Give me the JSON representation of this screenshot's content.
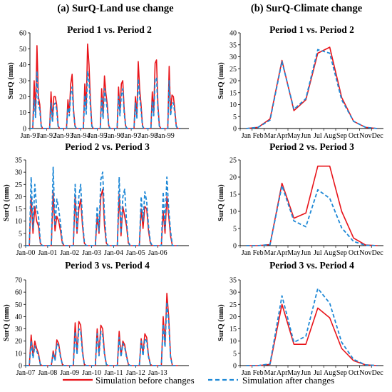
{
  "column_titles": {
    "left": "(a) SurQ-Land use change",
    "right": "(b) SurQ-Climate change"
  },
  "colors": {
    "before": "#e8141a",
    "after": "#1e88d6",
    "axis": "#000000",
    "grid": "#c8c8c8"
  },
  "legend": {
    "before": "Simulation before changes",
    "after": "Simulation after changes"
  },
  "chart_data": [
    {
      "type": "line",
      "title": "Period 1 vs. Period 2",
      "ylabel": "SurQ (mm)",
      "ylim": [
        0,
        60
      ],
      "yticks": [
        0,
        10,
        20,
        30,
        40,
        50,
        60
      ],
      "grid": false,
      "xtick_labels": [
        "Jan-91",
        "Jan-92",
        "Jan-93",
        "Jan-94",
        "Jan-95",
        "Jan-96",
        "Jan-97",
        "Jan-98",
        "Jan-99"
      ],
      "months_per_label": 12,
      "series": [
        {
          "name": "Simulation before changes",
          "values": [
            0,
            0,
            0,
            30,
            10,
            52,
            20,
            15,
            2,
            0,
            0,
            0,
            0,
            0,
            0,
            23,
            5,
            20,
            20,
            15,
            2,
            0,
            0,
            0,
            0,
            0,
            0,
            18,
            10,
            28,
            34,
            12,
            2,
            0,
            0,
            0,
            0,
            0,
            0,
            28,
            12,
            53,
            40,
            18,
            2,
            0,
            0,
            0,
            0,
            0,
            0,
            25,
            8,
            33,
            22,
            15,
            2,
            0,
            0,
            0,
            0,
            0,
            0,
            26,
            10,
            28,
            30,
            12,
            2,
            0,
            0,
            0,
            0,
            0,
            0,
            20,
            8,
            42,
            25,
            15,
            2,
            0,
            0,
            0,
            0,
            0,
            0,
            23,
            10,
            41,
            43,
            15,
            2,
            0,
            0,
            0,
            0,
            0,
            0,
            39,
            10,
            21,
            20,
            12,
            2,
            0,
            0,
            0
          ]
        },
        {
          "name": "Simulation after changes",
          "values": [
            0,
            0,
            0,
            18,
            7,
            36,
            15,
            12,
            1.5,
            0,
            0,
            0,
            0,
            0,
            0,
            16,
            4,
            15,
            16,
            12,
            1.5,
            0,
            0,
            0,
            0,
            0,
            0,
            13,
            8,
            22,
            26,
            10,
            1.5,
            0,
            0,
            0,
            0,
            0,
            0,
            21,
            9,
            36,
            30,
            14,
            1.5,
            0,
            0,
            0,
            0,
            0,
            0,
            19,
            6,
            25,
            18,
            12,
            1.5,
            0,
            0,
            0,
            0,
            0,
            0,
            20,
            8,
            21,
            25,
            10,
            1.5,
            0,
            0,
            0,
            0,
            0,
            0,
            16,
            6,
            31,
            20,
            12,
            1.5,
            0,
            0,
            0,
            0,
            0,
            0,
            17,
            8,
            31,
            32,
            12,
            1.5,
            0,
            0,
            0,
            0,
            0,
            0,
            30,
            8,
            16,
            16,
            10,
            1.5,
            0,
            0,
            0
          ]
        }
      ]
    },
    {
      "type": "line",
      "title": "Period 1 vs. Period 2",
      "ylabel": "SurQ (mm)",
      "ylim": [
        0,
        40
      ],
      "yticks": [
        0,
        5,
        10,
        15,
        20,
        25,
        30,
        35,
        40
      ],
      "grid": false,
      "categories": [
        "Jan",
        "Feb",
        "Mar",
        "Apr",
        "May",
        "Jun",
        "Jul",
        "Aug",
        "Sep",
        "Oct",
        "Nov",
        "Dec"
      ],
      "series": [
        {
          "name": "Simulation before changes",
          "values": [
            0,
            0.5,
            4,
            28.5,
            7.5,
            12,
            31.5,
            34,
            13,
            3,
            0.5,
            0
          ]
        },
        {
          "name": "Simulation after changes",
          "values": [
            0,
            0.5,
            3.5,
            28,
            8,
            12.5,
            33,
            31.5,
            12,
            3,
            0.5,
            0
          ]
        }
      ]
    },
    {
      "type": "line",
      "title": "Period 2 vs. Period 3",
      "ylabel": "SurQ (mm)",
      "ylim": [
        0,
        35
      ],
      "yticks": [
        0,
        5,
        10,
        15,
        20,
        25,
        30,
        35
      ],
      "grid": false,
      "xtick_labels": [
        "Jan-00",
        "Jan-01",
        "Jan-02",
        "Jan-03",
        "Jan-04",
        "Jan-05",
        "Jan-06"
      ],
      "months_per_label": 12,
      "series": [
        {
          "name": "Simulation before changes",
          "values": [
            0,
            0,
            0,
            20,
            5,
            16,
            10,
            8,
            1,
            0,
            0,
            0,
            0,
            0,
            0,
            22,
            6,
            12,
            10,
            6,
            1,
            0,
            0,
            0,
            0,
            0,
            0,
            20,
            5,
            15,
            19,
            8,
            1,
            0,
            0,
            0,
            0,
            0,
            0,
            12,
            5,
            20,
            23,
            8,
            1,
            0,
            0,
            0,
            0,
            0,
            0,
            21,
            4,
            16,
            12,
            8,
            1,
            0,
            0,
            0,
            0,
            0,
            0,
            15,
            7,
            16,
            15,
            6,
            1,
            0,
            0,
            0,
            0,
            0,
            0,
            14,
            5,
            20,
            12,
            4,
            0,
            0,
            0,
            0
          ]
        },
        {
          "name": "Simulation after changes",
          "values": [
            0,
            0,
            0,
            28,
            7,
            25,
            15,
            12,
            1.5,
            0,
            0,
            0,
            0,
            0,
            0,
            32,
            8,
            19,
            15,
            9,
            1.5,
            0,
            0,
            0,
            0,
            0,
            0,
            25,
            6,
            20,
            25,
            10,
            1.5,
            0,
            0,
            0,
            0,
            0,
            0,
            16,
            6,
            27,
            30,
            12,
            1.5,
            0,
            0,
            0,
            0,
            0,
            0,
            28,
            5,
            20,
            23,
            10,
            1.5,
            0,
            0,
            0,
            0,
            0,
            0,
            20,
            10,
            22,
            18,
            8,
            1.5,
            0,
            0,
            0,
            0,
            0,
            0,
            22,
            7,
            28,
            15,
            6,
            0,
            0,
            0,
            0
          ]
        }
      ]
    },
    {
      "type": "line",
      "title": "Period 2 vs. Period 3",
      "ylabel": "SurQ (mm)",
      "ylim": [
        0,
        25
      ],
      "yticks": [
        0,
        5,
        10,
        15,
        20,
        25
      ],
      "grid": false,
      "categories": [
        "Jan",
        "Feb",
        "Mar",
        "Apr",
        "May",
        "Jun",
        "Jul",
        "Aug",
        "Sep",
        "Oct",
        "Nov",
        "Dec"
      ],
      "series": [
        {
          "name": "Simulation before changes",
          "values": [
            0,
            0,
            0.3,
            18.2,
            8,
            9.5,
            23.2,
            23.2,
            10,
            2.2,
            0.2,
            0
          ]
        },
        {
          "name": "Simulation after changes",
          "values": [
            0,
            0,
            0.3,
            17.5,
            7.2,
            5.5,
            16.3,
            13.8,
            5.2,
            1.2,
            0.1,
            0
          ]
        }
      ]
    },
    {
      "type": "line",
      "title": "Period 3 vs. Period 4",
      "ylabel": "SurQ (mm)",
      "ylim": [
        0,
        70
      ],
      "yticks": [
        0,
        10,
        20,
        30,
        40,
        50,
        60,
        70
      ],
      "grid": false,
      "xtick_labels": [
        "Jan-07",
        "Jan-08",
        "Jan-09",
        "Jan-10",
        "Jan-11",
        "Jan-12",
        "Jan-13"
      ],
      "months_per_label": 12,
      "series": [
        {
          "name": "Simulation before changes",
          "values": [
            0,
            0,
            0,
            25,
            8,
            20,
            14,
            10,
            1,
            0,
            0,
            0,
            0,
            0,
            0,
            12,
            5,
            21,
            18,
            8,
            1,
            0,
            0,
            0,
            0,
            0,
            0,
            35,
            10,
            36,
            33,
            12,
            1,
            0,
            0,
            0,
            0,
            0,
            0,
            30,
            10,
            33,
            30,
            10,
            1,
            0,
            0,
            0,
            0,
            0,
            0,
            28,
            8,
            20,
            17,
            8,
            1,
            0,
            0,
            0,
            0,
            0,
            0,
            22,
            10,
            26,
            23,
            8,
            1,
            0,
            0,
            0,
            0,
            0,
            0,
            40,
            17,
            59,
            40,
            8,
            0,
            0,
            0,
            0
          ]
        },
        {
          "name": "Simulation after changes",
          "values": [
            0,
            0,
            0,
            20,
            6,
            16,
            12,
            8,
            1,
            0,
            0,
            0,
            0,
            0,
            0,
            10,
            4,
            18,
            16,
            7,
            1,
            0,
            0,
            0,
            0,
            0,
            0,
            28,
            9,
            30,
            28,
            10,
            1,
            0,
            0,
            0,
            0,
            0,
            0,
            26,
            8,
            28,
            25,
            9,
            1,
            0,
            0,
            0,
            0,
            0,
            0,
            23,
            7,
            18,
            15,
            7,
            1,
            0,
            0,
            0,
            0,
            0,
            0,
            20,
            8,
            22,
            20,
            7,
            1,
            0,
            0,
            0,
            0,
            0,
            0,
            34,
            15,
            52,
            36,
            7,
            0,
            0,
            0,
            0
          ]
        }
      ]
    },
    {
      "type": "line",
      "title": "Period 3 vs. Period 4",
      "ylabel": "SurQ (mm)",
      "ylim": [
        0,
        35
      ],
      "yticks": [
        0,
        5,
        10,
        15,
        20,
        25,
        30,
        35
      ],
      "grid": false,
      "categories": [
        "Jan",
        "Feb",
        "Mar",
        "Apr",
        "May",
        "Jun",
        "Jul",
        "Aug",
        "Sep",
        "Oct",
        "Nov",
        "Dec"
      ],
      "series": [
        {
          "name": "Simulation before changes",
          "values": [
            0,
            0,
            0.5,
            25,
            8.7,
            8.7,
            23.5,
            19.5,
            7,
            2,
            0.3,
            0
          ]
        },
        {
          "name": "Simulation after changes",
          "values": [
            0,
            0,
            0.7,
            28.5,
            9.5,
            12,
            31.5,
            25.5,
            9.5,
            2.5,
            0.3,
            0
          ]
        }
      ]
    }
  ]
}
